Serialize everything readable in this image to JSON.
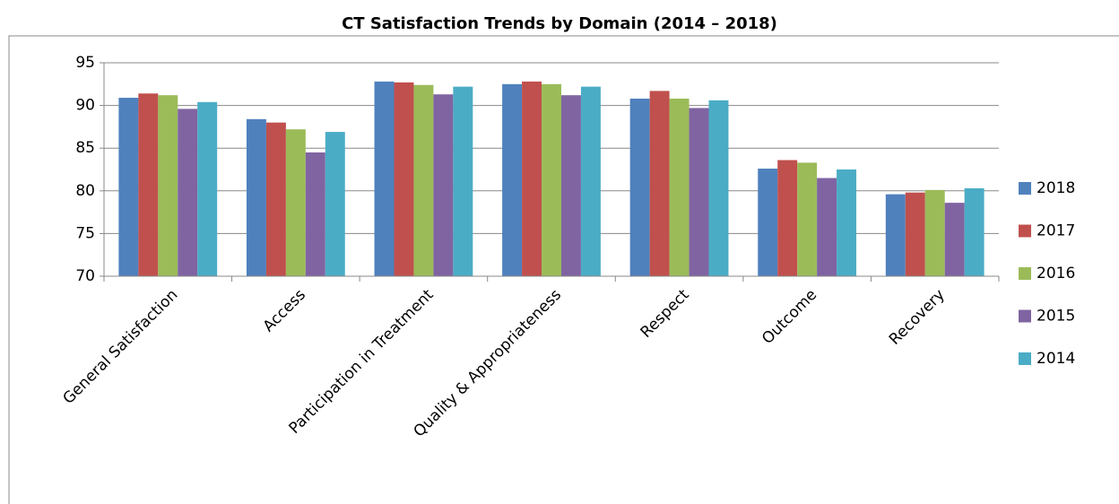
{
  "chart_data": {
    "type": "bar",
    "title": "CT Satisfaction Trends by Domain (2014 – 2018)",
    "categories": [
      "General Satisfaction",
      "Access",
      "Participation in Treatment",
      "Quality & Appropriateness",
      "Respect",
      "Outcome",
      "Recovery"
    ],
    "series": [
      {
        "name": "2018",
        "color": "#4f81bd",
        "values": [
          90.9,
          88.4,
          92.8,
          92.5,
          90.8,
          82.6,
          79.6
        ]
      },
      {
        "name": "2017",
        "color": "#c0504d",
        "values": [
          91.4,
          88.0,
          92.7,
          92.8,
          91.7,
          83.6,
          79.8
        ]
      },
      {
        "name": "2016",
        "color": "#9bbb59",
        "values": [
          91.2,
          87.2,
          92.4,
          92.5,
          90.8,
          83.3,
          80.1
        ]
      },
      {
        "name": "2015",
        "color": "#8064a2",
        "values": [
          89.6,
          84.5,
          91.3,
          91.2,
          89.7,
          81.5,
          78.6
        ]
      },
      {
        "name": "2014",
        "color": "#4bacc6",
        "values": [
          90.4,
          86.9,
          92.2,
          92.2,
          90.6,
          82.5,
          80.3
        ]
      }
    ],
    "ylim": [
      70,
      95
    ],
    "yticks": [
      70,
      75,
      80,
      85,
      90,
      95
    ],
    "grid": true,
    "legend": "right"
  }
}
